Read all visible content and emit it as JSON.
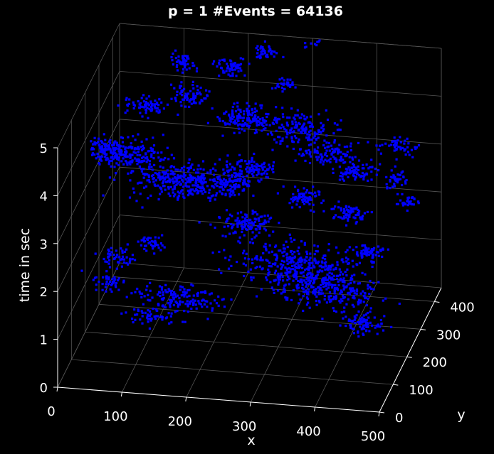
{
  "chart_data": {
    "type": "scatter3d",
    "title": "p = 1  #Events = 64136",
    "xlabel": "x",
    "ylabel": "y",
    "zlabel": "time in sec",
    "xlim": [
      0,
      500
    ],
    "ylim": [
      0,
      450
    ],
    "zlim": [
      0,
      5
    ],
    "x_ticks": [
      "0",
      "100",
      "200",
      "300",
      "400",
      "500"
    ],
    "y_ticks": [
      "0",
      "100",
      "200",
      "300",
      "400"
    ],
    "z_ticks": [
      "0",
      "1",
      "2",
      "3",
      "4",
      "5"
    ],
    "grid": true,
    "background_color": "#000000",
    "axis_color": "#ffffff",
    "grid_color": "#555555",
    "marker_color": "#0000ff",
    "clusters": [
      {
        "cx": 25,
        "cy": 240,
        "cz": 3.6,
        "sx": 14,
        "sy": 12,
        "sz": 0.1,
        "n": 90
      },
      {
        "cx": 60,
        "cy": 250,
        "cz": 3.5,
        "sx": 28,
        "sy": 18,
        "sz": 0.12,
        "n": 160
      },
      {
        "cx": 120,
        "cy": 250,
        "cz": 3.05,
        "sx": 40,
        "sy": 22,
        "sz": 0.15,
        "n": 220
      },
      {
        "cx": 165,
        "cy": 280,
        "cz": 2.75,
        "sx": 28,
        "sy": 14,
        "sz": 0.12,
        "n": 120
      },
      {
        "cx": 210,
        "cy": 300,
        "cz": 2.75,
        "sx": 14,
        "sy": 10,
        "sz": 0.1,
        "n": 80
      },
      {
        "cx": 250,
        "cy": 210,
        "cz": 2.45,
        "sx": 20,
        "sy": 14,
        "sz": 0.1,
        "n": 120
      },
      {
        "cx": 330,
        "cy": 195,
        "cz": 1.75,
        "sx": 45,
        "sy": 18,
        "sz": 0.2,
        "n": 320
      },
      {
        "cx": 385,
        "cy": 175,
        "cz": 1.45,
        "sx": 40,
        "sy": 16,
        "sz": 0.18,
        "n": 260
      },
      {
        "cx": 445,
        "cy": 140,
        "cz": 0.95,
        "sx": 18,
        "sy": 10,
        "sz": 0.1,
        "n": 80
      },
      {
        "cx": 160,
        "cy": 130,
        "cz": 1.25,
        "sx": 32,
        "sy": 14,
        "sz": 0.12,
        "n": 160
      },
      {
        "cx": 60,
        "cy": 165,
        "cz": 1.85,
        "sx": 12,
        "sy": 8,
        "sz": 0.1,
        "n": 50
      },
      {
        "cx": 100,
        "cy": 210,
        "cz": 1.9,
        "sx": 10,
        "sy": 8,
        "sz": 0.08,
        "n": 40
      },
      {
        "cx": 230,
        "cy": 330,
        "cz": 2.9,
        "sx": 22,
        "sy": 12,
        "sz": 0.1,
        "n": 100
      },
      {
        "cx": 320,
        "cy": 300,
        "cz": 2.55,
        "sx": 14,
        "sy": 10,
        "sz": 0.08,
        "n": 70
      },
      {
        "cx": 390,
        "cy": 290,
        "cz": 2.35,
        "sx": 14,
        "sy": 10,
        "sz": 0.08,
        "n": 70
      },
      {
        "cx": 430,
        "cy": 260,
        "cz": 1.75,
        "sx": 12,
        "sy": 10,
        "sz": 0.08,
        "n": 60
      },
      {
        "cx": 215,
        "cy": 360,
        "cz": 3.75,
        "sx": 22,
        "sy": 12,
        "sz": 0.12,
        "n": 140
      },
      {
        "cx": 290,
        "cy": 375,
        "cz": 3.55,
        "sx": 30,
        "sy": 14,
        "sz": 0.14,
        "n": 160
      },
      {
        "cx": 340,
        "cy": 360,
        "cz": 3.15,
        "sx": 22,
        "sy": 12,
        "sz": 0.1,
        "n": 110
      },
      {
        "cx": 390,
        "cy": 350,
        "cz": 2.9,
        "sx": 16,
        "sy": 10,
        "sz": 0.1,
        "n": 80
      },
      {
        "cx": 130,
        "cy": 360,
        "cz": 4.15,
        "sx": 14,
        "sy": 10,
        "sz": 0.1,
        "n": 70
      },
      {
        "cx": 110,
        "cy": 400,
        "cz": 4.6,
        "sx": 10,
        "sy": 8,
        "sz": 0.08,
        "n": 50
      },
      {
        "cx": 180,
        "cy": 420,
        "cz": 4.45,
        "sx": 12,
        "sy": 8,
        "sz": 0.08,
        "n": 60
      },
      {
        "cx": 230,
        "cy": 430,
        "cz": 4.75,
        "sx": 10,
        "sy": 6,
        "sz": 0.08,
        "n": 40
      },
      {
        "cx": 300,
        "cy": 445,
        "cz": 5.0,
        "sx": 10,
        "sy": 6,
        "sz": 0.08,
        "n": 40
      },
      {
        "cx": 270,
        "cy": 370,
        "cz": 4.45,
        "sx": 8,
        "sy": 6,
        "sz": 0.06,
        "n": 30
      },
      {
        "cx": 460,
        "cy": 300,
        "cz": 3.1,
        "sx": 10,
        "sy": 8,
        "sz": 0.08,
        "n": 40
      },
      {
        "cx": 450,
        "cy": 380,
        "cz": 3.3,
        "sx": 14,
        "sy": 8,
        "sz": 0.08,
        "n": 50
      },
      {
        "cx": 70,
        "cy": 330,
        "cz": 4.05,
        "sx": 18,
        "sy": 10,
        "sz": 0.1,
        "n": 70
      },
      {
        "cx": 60,
        "cy": 100,
        "cz": 1.7,
        "sx": 14,
        "sy": 8,
        "sz": 0.08,
        "n": 40
      },
      {
        "cx": 130,
        "cy": 70,
        "cz": 1.2,
        "sx": 20,
        "sy": 8,
        "sz": 0.08,
        "n": 50
      },
      {
        "cx": 480,
        "cy": 300,
        "cz": 2.65,
        "sx": 8,
        "sy": 6,
        "sz": 0.06,
        "n": 30
      }
    ]
  }
}
